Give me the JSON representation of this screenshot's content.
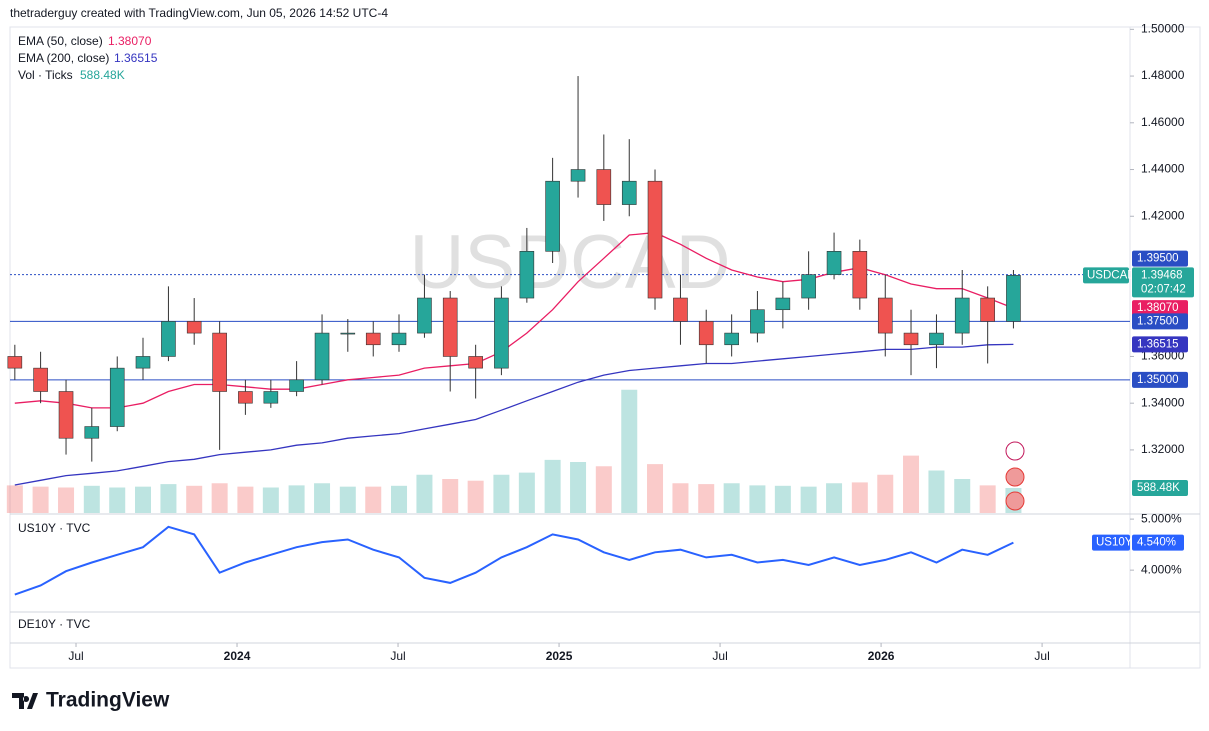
{
  "header": "thetraderguy created with TradingView.com, Jun 05, 2026 14:52 UTC-4",
  "brand": "TradingView",
  "chart_data": {
    "type": "candlestick",
    "title": "USDCAD",
    "x": [
      2023.31,
      2023.39,
      2023.469,
      2023.549,
      2023.628,
      2023.708,
      2023.787,
      2023.867,
      2023.946,
      2024.026,
      2024.105,
      2024.185,
      2024.264,
      2024.344,
      2024.423,
      2024.503,
      2024.582,
      2024.662,
      2024.741,
      2024.821,
      2024.9,
      2024.98,
      2025.059,
      2025.139,
      2025.218,
      2025.298,
      2025.377,
      2025.457,
      2025.536,
      2025.616,
      2025.695,
      2025.775,
      2025.854,
      2025.934,
      2026.013,
      2026.093,
      2026.172,
      2026.252,
      2026.331,
      2026.411
    ],
    "open": [
      1.36,
      1.355,
      1.345,
      1.325,
      1.33,
      1.355,
      1.36,
      1.375,
      1.37,
      1.345,
      1.34,
      1.345,
      1.35,
      1.37,
      1.37,
      1.365,
      1.37,
      1.385,
      1.36,
      1.355,
      1.385,
      1.405,
      1.435,
      1.44,
      1.425,
      1.435,
      1.385,
      1.375,
      1.365,
      1.37,
      1.38,
      1.385,
      1.395,
      1.405,
      1.385,
      1.37,
      1.365,
      1.37,
      1.385,
      1.375
    ],
    "high": [
      1.365,
      1.362,
      1.35,
      1.338,
      1.36,
      1.368,
      1.39,
      1.385,
      1.375,
      1.35,
      1.35,
      1.358,
      1.378,
      1.376,
      1.375,
      1.378,
      1.395,
      1.388,
      1.365,
      1.39,
      1.415,
      1.445,
      1.48,
      1.455,
      1.453,
      1.44,
      1.395,
      1.38,
      1.378,
      1.388,
      1.392,
      1.405,
      1.413,
      1.41,
      1.395,
      1.38,
      1.378,
      1.397,
      1.39,
      1.397
    ],
    "low": [
      1.35,
      1.34,
      1.318,
      1.315,
      1.328,
      1.35,
      1.358,
      1.365,
      1.32,
      1.335,
      1.338,
      1.343,
      1.348,
      1.362,
      1.36,
      1.362,
      1.368,
      1.345,
      1.342,
      1.352,
      1.383,
      1.4,
      1.428,
      1.418,
      1.42,
      1.38,
      1.365,
      1.357,
      1.36,
      1.366,
      1.372,
      1.38,
      1.393,
      1.38,
      1.36,
      1.352,
      1.355,
      1.365,
      1.357,
      1.372
    ],
    "close": [
      1.355,
      1.345,
      1.325,
      1.33,
      1.355,
      1.36,
      1.375,
      1.37,
      1.345,
      1.34,
      1.345,
      1.35,
      1.37,
      1.37,
      1.365,
      1.37,
      1.385,
      1.36,
      1.355,
      1.385,
      1.405,
      1.435,
      1.44,
      1.425,
      1.435,
      1.385,
      1.375,
      1.365,
      1.37,
      1.38,
      1.385,
      1.395,
      1.405,
      1.385,
      1.37,
      1.365,
      1.37,
      1.385,
      1.375,
      1.3947
    ],
    "up_color": "#26a69a",
    "down_color": "#ef5350",
    "xlim": [
      2023.295,
      2026.773
    ],
    "xticks": [
      {
        "value": 2023.5,
        "label": "Jul"
      },
      {
        "value": 2024,
        "label": "2024"
      },
      {
        "value": 2024.5,
        "label": "Jul"
      },
      {
        "value": 2025,
        "label": "2025"
      },
      {
        "value": 2025.5,
        "label": "Jul"
      },
      {
        "value": 2026,
        "label": "2026"
      },
      {
        "value": 2026.5,
        "label": "Jul"
      }
    ],
    "ylim": [
      1.293,
      1.501
    ],
    "yticks": [
      {
        "value": 1.5,
        "label": "1.50000"
      },
      {
        "value": 1.48,
        "label": "1.48000"
      },
      {
        "value": 1.46,
        "label": "1.46000"
      },
      {
        "value": 1.44,
        "label": "1.44000"
      },
      {
        "value": 1.42,
        "label": "1.42000"
      },
      {
        "value": 1.36,
        "label": "1.36000"
      },
      {
        "value": 1.34,
        "label": "1.34000"
      },
      {
        "value": 1.32,
        "label": "1.32000"
      }
    ],
    "series": [
      {
        "name": "EMA (50, close)",
        "color": "#e91e63",
        "last_label": "1.38070",
        "values": [
          1.34,
          1.341,
          1.34,
          1.338,
          1.338,
          1.34,
          1.345,
          1.348,
          1.348,
          1.347,
          1.346,
          1.346,
          1.348,
          1.35,
          1.351,
          1.352,
          1.355,
          1.356,
          1.357,
          1.362,
          1.37,
          1.38,
          1.392,
          1.402,
          1.412,
          1.413,
          1.408,
          1.402,
          1.397,
          1.394,
          1.392,
          1.393,
          1.396,
          1.398,
          1.395,
          1.391,
          1.389,
          1.389,
          1.385,
          1.3807
        ]
      },
      {
        "name": "EMA (200, close)",
        "color": "#3535c0",
        "last_label": "1.36515",
        "values": [
          1.305,
          1.307,
          1.309,
          1.31,
          1.311,
          1.313,
          1.315,
          1.316,
          1.318,
          1.319,
          1.32,
          1.322,
          1.323,
          1.325,
          1.326,
          1.327,
          1.329,
          1.331,
          1.333,
          1.337,
          1.341,
          1.345,
          1.349,
          1.352,
          1.354,
          1.355,
          1.356,
          1.357,
          1.357,
          1.358,
          1.359,
          1.36,
          1.361,
          1.362,
          1.363,
          1.363,
          1.364,
          1.364,
          1.365,
          1.36515
        ]
      }
    ],
    "levels": [
      {
        "value": 1.395,
        "label": "1.39500"
      },
      {
        "value": 1.375,
        "label": "1.37500"
      },
      {
        "value": 1.35,
        "label": "1.35000"
      }
    ],
    "level_color": "#2a4ec4",
    "last_price": {
      "value": 1.39468,
      "label": "1.39468",
      "countdown": "02:07:42"
    },
    "volume": {
      "name": "Vol · Ticks",
      "color": "#26a69a",
      "last_label": "588.48K",
      "ylim": [
        0,
        4000000
      ],
      "values": [
        650000,
        620000,
        600000,
        640000,
        600000,
        620000,
        680000,
        640000,
        700000,
        620000,
        600000,
        650000,
        700000,
        620000,
        620000,
        640000,
        900000,
        800000,
        760000,
        900000,
        950000,
        1250000,
        1200000,
        1100000,
        2900000,
        1150000,
        700000,
        680000,
        700000,
        650000,
        640000,
        620000,
        700000,
        720000,
        900000,
        1350000,
        1000000,
        800000,
        650000,
        588480
      ]
    },
    "us10y": {
      "name": "US10Y · TVC",
      "symbol": "US10Y",
      "color": "#2962ff",
      "last_label": "4.540%",
      "ylim": [
        3.18,
        5.1
      ],
      "yticks": [
        {
          "value": 5,
          "label": "5.000%"
        },
        {
          "value": 4,
          "label": "4.000%"
        }
      ],
      "values": [
        3.52,
        3.7,
        3.98,
        4.15,
        4.3,
        4.45,
        4.85,
        4.7,
        3.95,
        4.15,
        4.3,
        4.45,
        4.55,
        4.6,
        4.4,
        4.25,
        3.85,
        3.75,
        3.95,
        4.25,
        4.45,
        4.7,
        4.6,
        4.35,
        4.2,
        4.35,
        4.4,
        4.25,
        4.3,
        4.15,
        4.2,
        4.1,
        4.25,
        4.1,
        4.2,
        4.35,
        4.15,
        4.4,
        4.3,
        4.54
      ]
    },
    "de10y": {
      "name": "DE10Y · TVC"
    }
  }
}
